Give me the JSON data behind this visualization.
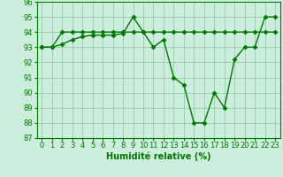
{
  "line1_x": [
    0,
    1,
    2,
    3,
    4,
    5,
    6,
    7,
    8,
    9,
    10,
    11,
    12,
    13,
    14,
    15,
    16,
    17,
    18,
    19,
    20,
    21,
    22,
    23
  ],
  "line1_y": [
    93,
    93,
    94,
    94,
    94,
    94,
    94,
    94,
    94,
    94,
    94,
    94,
    94,
    94,
    94,
    94,
    94,
    94,
    94,
    94,
    94,
    94,
    94,
    94
  ],
  "line2_x": [
    0,
    1,
    2,
    3,
    4,
    5,
    6,
    7,
    8,
    9,
    10,
    11,
    12,
    13,
    14,
    15,
    16,
    17,
    18,
    19,
    20,
    21,
    22,
    23
  ],
  "line2_y": [
    93,
    93,
    93.2,
    93.5,
    93.7,
    93.8,
    93.8,
    93.8,
    93.9,
    95,
    94,
    93,
    93.5,
    91,
    90.5,
    88,
    88,
    90,
    89,
    92.2,
    93,
    93,
    95,
    95
  ],
  "line_color": "#007700",
  "bg_color": "#cceedd",
  "grid_color": "#99ccaa",
  "xlabel": "Humidité relative (%)",
  "ylim": [
    87,
    96
  ],
  "xlim": [
    -0.5,
    23.5
  ],
  "yticks": [
    87,
    88,
    89,
    90,
    91,
    92,
    93,
    94,
    95,
    96
  ],
  "xticks": [
    0,
    1,
    2,
    3,
    4,
    5,
    6,
    7,
    8,
    9,
    10,
    11,
    12,
    13,
    14,
    15,
    16,
    17,
    18,
    19,
    20,
    21,
    22,
    23
  ],
  "marker": "D",
  "markersize": 2.5,
  "linewidth": 1.0,
  "xlabel_fontsize": 7,
  "tick_fontsize": 6
}
